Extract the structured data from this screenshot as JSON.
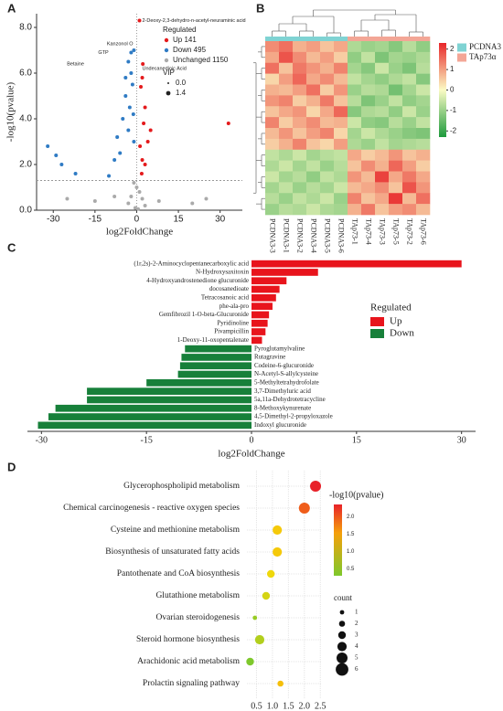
{
  "chart_data": [
    {
      "type": "scatter",
      "panel": "A",
      "xlabel": "log2FoldChange",
      "ylabel": "-log10(pvalue)",
      "xlim": [
        -36,
        38
      ],
      "ylim": [
        0,
        8.6
      ],
      "xticks": [
        -30,
        -15,
        0,
        15,
        30
      ],
      "yticks": [
        {
          "value": 0,
          "label": "0.0"
        },
        {
          "value": 2,
          "label": "2.0"
        },
        {
          "value": 4,
          "label": "4.0"
        },
        {
          "value": 6,
          "label": "6.0"
        },
        {
          "value": 8,
          "label": "8.0"
        }
      ],
      "threshold_y": 1.3,
      "threshold_x": 0,
      "legend_title": "Regulated",
      "size_title": "VIP",
      "sizes": [
        {
          "value": 0,
          "label": "0.0"
        },
        1.4
      ],
      "annotations": [
        "2-Deoxy-2,3-dehydro-n-acetyl-neuraminic acid",
        "Kanzonol O",
        "GTP",
        "Betaine",
        "Undecanedioic Acid"
      ],
      "series": [
        {
          "name": "Up 141",
          "color": "#e41a1c",
          "x": [
            1,
            2,
            1.5,
            3,
            2.5,
            4,
            1.2,
            2,
            3,
            1.8,
            5,
            2.2,
            33
          ],
          "y": [
            8.3,
            5.8,
            5.4,
            4.5,
            3.8,
            3,
            2.8,
            2.2,
            2,
            1.6,
            3.5,
            6.4,
            3.8
          ]
        },
        {
          "name": "Down 495",
          "color": "#2f7bc4",
          "x": [
            -1,
            -2,
            -3,
            -1.5,
            -4,
            -2.5,
            -5,
            -3,
            -1,
            -6,
            -8,
            -32,
            -29,
            -27,
            -22,
            -10,
            -2,
            -4,
            -7,
            -1.2
          ],
          "y": [
            7.0,
            6.9,
            6.5,
            5.5,
            5,
            4.5,
            4,
            3.5,
            3,
            2.5,
            2.2,
            2.8,
            2.4,
            2.0,
            1.6,
            1.5,
            6.0,
            5.8,
            3.2,
            4.2
          ]
        },
        {
          "name": "Unchanged 1150",
          "color": "#aaaaaa",
          "x": [
            -1,
            0,
            1,
            -2,
            2,
            -3,
            3,
            -0.5,
            0.5,
            -25,
            -15,
            20,
            25,
            -8,
            8
          ],
          "y": [
            1.2,
            1,
            0.8,
            0.6,
            0.5,
            0.3,
            0.2,
            0.1,
            0.05,
            0.5,
            0.4,
            0.3,
            0.5,
            0.6,
            0.4
          ]
        }
      ]
    },
    {
      "type": "heatmap",
      "panel": "B",
      "columns": [
        "PCDNA3-3",
        "PCDNA3-1",
        "PCDNA3-2",
        "PCDNA3-4",
        "PCDNA3-5",
        "PCDNA3-6",
        "TAp73-1",
        "TAp73-4",
        "TAp73-3",
        "TAp73-5",
        "TAp73-2",
        "TAp73-6"
      ],
      "column_group": [
        0,
        0,
        0,
        0,
        0,
        0,
        1,
        1,
        1,
        1,
        1,
        1
      ],
      "groups": [
        {
          "name": "PCDNA3",
          "color": "#7fd3d3"
        },
        {
          "name": "TAp73α",
          "color": "#f3a696"
        }
      ],
      "clim": [
        -2.3,
        2.3
      ],
      "cticks": [
        2,
        1,
        0,
        -1,
        -2
      ],
      "values": [
        [
          1.2,
          1.5,
          0.8,
          1.0,
          0.6,
          0.9,
          -0.8,
          -1.0,
          -0.9,
          -1.2,
          -0.7,
          -1.1
        ],
        [
          0.9,
          1.8,
          1.2,
          0.7,
          1.0,
          0.5,
          -1.1,
          -0.6,
          -1.3,
          -0.9,
          -1.0,
          -0.8
        ],
        [
          1.5,
          0.6,
          1.4,
          1.1,
          0.8,
          1.3,
          -0.9,
          -1.2,
          -0.5,
          -1.0,
          -1.3,
          -0.7
        ],
        [
          0.4,
          1.0,
          1.6,
          0.9,
          1.2,
          0.7,
          -0.6,
          -0.9,
          -1.1,
          -0.8,
          -0.6,
          -1.2
        ],
        [
          0.8,
          0.7,
          1.0,
          1.5,
          0.5,
          1.1,
          -1.0,
          -0.7,
          -0.8,
          -1.4,
          -0.9,
          -0.5
        ],
        [
          1.1,
          1.3,
          0.5,
          0.8,
          1.4,
          0.6,
          -0.7,
          -1.3,
          -1.0,
          -0.6,
          -1.1,
          -0.9
        ],
        [
          0.6,
          0.9,
          1.1,
          0.4,
          0.9,
          1.6,
          -1.2,
          -0.8,
          -0.7,
          -1.1,
          -0.5,
          -1.0
        ],
        [
          1.3,
          0.5,
          0.9,
          1.2,
          0.7,
          0.8,
          -0.5,
          -1.1,
          -1.2,
          -0.7,
          -1.0,
          -0.6
        ],
        [
          0.7,
          1.1,
          0.6,
          1.0,
          1.3,
          0.4,
          -0.9,
          -0.5,
          -0.8,
          -1.0,
          -1.2,
          -1.3
        ],
        [
          0.5,
          0.8,
          1.3,
          0.6,
          0.4,
          1.0,
          -0.8,
          -1.0,
          -0.6,
          -0.9,
          -0.8,
          -0.7
        ],
        [
          -0.6,
          -0.8,
          -0.5,
          -0.9,
          -0.7,
          -0.6,
          0.9,
          0.5,
          0.7,
          1.1,
          0.6,
          0.8
        ],
        [
          -0.8,
          -0.5,
          -0.9,
          -0.6,
          -1.0,
          -0.7,
          0.6,
          1.2,
          0.8,
          1.6,
          1.0,
          0.5
        ],
        [
          -0.5,
          -0.9,
          -0.7,
          -1.1,
          -0.6,
          -0.8,
          1.1,
          0.7,
          2.0,
          0.9,
          1.4,
          0.9
        ],
        [
          -0.9,
          -0.6,
          -1.0,
          -0.7,
          -0.9,
          -0.5,
          0.7,
          0.9,
          1.2,
          0.6,
          1.8,
          1.1
        ],
        [
          -0.7,
          -1.0,
          -0.6,
          -0.8,
          -0.5,
          -1.0,
          1.3,
          0.6,
          0.9,
          2.1,
          0.7,
          1.5
        ],
        [
          -1.0,
          -0.7,
          -0.8,
          -0.5,
          -0.8,
          -0.9,
          0.8,
          1.4,
          0.6,
          1.0,
          1.2,
          0.7
        ]
      ]
    },
    {
      "type": "hbar",
      "panel": "C",
      "xlabel": "log2FoldChange",
      "legend_title": "Regulated",
      "xlim": [
        -32,
        32
      ],
      "xticks": [
        -30,
        -15,
        0,
        15,
        30
      ],
      "series": [
        {
          "name": "Up",
          "color": "#e8141c",
          "categories": [
            "(1r,2s)-2-Aminocyclopentanecarboxylic acid",
            "N-Hydroxysaxitoxin",
            "4-Hydroxyandrostenedione glucuronide",
            "docosanedioate",
            "Tetracosanoic acid",
            "phe-ala-pro",
            "Gemfibrozil 1-O-beta-Glucuronide",
            "Pyridinoline",
            "Pivampicillin",
            "1-Deoxy-11-oxopentalenate"
          ],
          "values": [
            30,
            9.5,
            5,
            4,
            3.5,
            3,
            2.5,
            2.3,
            2,
            1.5
          ]
        },
        {
          "name": "Down",
          "color": "#17803a",
          "categories": [
            "Pyroglutamylvaline",
            "Rutagravine",
            "Codeine-6-glucuronide",
            "N-Acetyl-S-allylcysteine",
            "5-Methyltetrahydrofolate",
            "3,7-Dimethyluric acid",
            "5a,11a-Dehydrotetracycline",
            "8-Methoxykynurenate",
            "4,5-Dimethyl-2-propyloxazole",
            "Indoxyl glucuronide"
          ],
          "values": [
            -9.5,
            -10,
            -10.2,
            -10.5,
            -15,
            -23.5,
            -23.5,
            -28,
            -29,
            -30.5
          ]
        }
      ]
    },
    {
      "type": "bubble",
      "panel": "D",
      "color_title": "-log10(pvalue)",
      "size_title": "count",
      "categories": [
        "Glycerophospholipid metabolism",
        "Chemical carcinogenesis - reactive oxygen species",
        "Cysteine and methionine metabolism",
        "Biosynthesis of unsaturated fatty acids",
        "Pantothenate and CoA biosynthesis",
        "Glutathione metabolism",
        "Ovarian steroidogenesis",
        "Steroid hormone biosynthesis",
        "Arachidonic acid metabolism",
        "Prolactin signaling pathway"
      ],
      "x": [
        2.35,
        2.0,
        1.15,
        1.15,
        0.95,
        0.8,
        0.45,
        0.6,
        0.3,
        1.25
      ],
      "pvalue": [
        2.35,
        2.0,
        1.15,
        1.15,
        0.95,
        0.8,
        0.45,
        0.6,
        0.3,
        1.25
      ],
      "count": [
        5,
        5,
        4,
        4,
        3,
        3,
        1,
        4,
        3,
        2
      ],
      "xlim": [
        0.2,
        2.55
      ],
      "xticks": [
        0.5,
        {
          "value": 1,
          "label": "1.0"
        },
        1.5,
        {
          "value": 2,
          "label": "2.0"
        },
        2.5
      ],
      "clim": [
        0.3,
        2.35
      ],
      "cticks": [
        {
          "value": 2,
          "label": "2.0"
        },
        1.5,
        {
          "value": 1,
          "label": "1.0"
        },
        0.5
      ],
      "count_legend": [
        1,
        2,
        3,
        4,
        5,
        6
      ]
    }
  ]
}
